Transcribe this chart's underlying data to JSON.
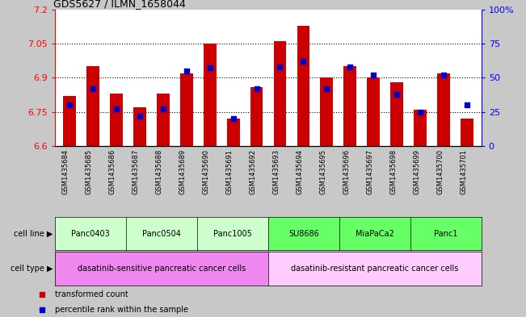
{
  "title": "GDS5627 / ILMN_1658044",
  "samples": [
    "GSM1435684",
    "GSM1435685",
    "GSM1435686",
    "GSM1435687",
    "GSM1435688",
    "GSM1435689",
    "GSM1435690",
    "GSM1435691",
    "GSM1435692",
    "GSM1435693",
    "GSM1435694",
    "GSM1435695",
    "GSM1435696",
    "GSM1435697",
    "GSM1435698",
    "GSM1435699",
    "GSM1435700",
    "GSM1435701"
  ],
  "bar_values": [
    6.82,
    6.95,
    6.83,
    6.77,
    6.83,
    6.92,
    7.05,
    6.72,
    6.86,
    7.06,
    7.13,
    6.9,
    6.95,
    6.9,
    6.88,
    6.76,
    6.92,
    6.72
  ],
  "percentile_values": [
    30,
    42,
    27,
    22,
    27,
    55,
    57,
    20,
    42,
    58,
    62,
    42,
    58,
    52,
    38,
    25,
    52,
    30
  ],
  "bar_color": "#cc0000",
  "blue_color": "#0000cc",
  "ylim_left": [
    6.6,
    7.2
  ],
  "ylim_right": [
    0,
    100
  ],
  "yticks_left": [
    6.6,
    6.75,
    6.9,
    7.05,
    7.2
  ],
  "yticks_right": [
    0,
    25,
    50,
    75,
    100
  ],
  "cell_lines": [
    {
      "label": "Panc0403",
      "start": 0,
      "end": 2,
      "color": "#ccffcc"
    },
    {
      "label": "Panc0504",
      "start": 3,
      "end": 5,
      "color": "#ccffcc"
    },
    {
      "label": "Panc1005",
      "start": 6,
      "end": 8,
      "color": "#ccffcc"
    },
    {
      "label": "SU8686",
      "start": 9,
      "end": 11,
      "color": "#66ff66"
    },
    {
      "label": "MiaPaCa2",
      "start": 12,
      "end": 14,
      "color": "#66ff66"
    },
    {
      "label": "Panc1",
      "start": 15,
      "end": 17,
      "color": "#66ff66"
    }
  ],
  "cell_types": [
    {
      "label": "dasatinib-sensitive pancreatic cancer cells",
      "start": 0,
      "end": 8,
      "color": "#ee88ee"
    },
    {
      "label": "dasatinib-resistant pancreatic cancer cells",
      "start": 9,
      "end": 17,
      "color": "#ffccff"
    }
  ],
  "legend_red": "transformed count",
  "legend_blue": "percentile rank within the sample",
  "fig_bg": "#c8c8c8",
  "xtick_bg": "#d0d0d0",
  "plot_bg": "#ffffff"
}
